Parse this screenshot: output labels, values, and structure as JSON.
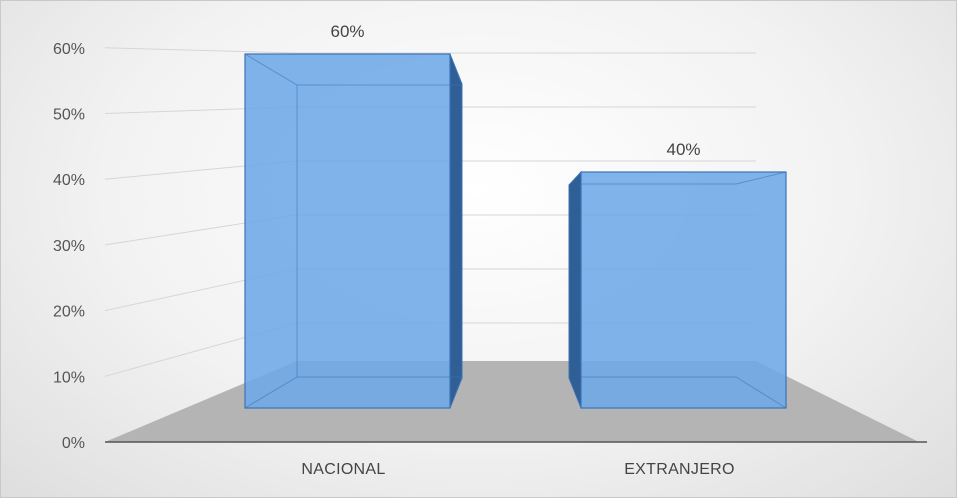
{
  "chart_data": {
    "type": "bar",
    "style": "3d-column",
    "categories": [
      "NACIONAL",
      "EXTRANJERO"
    ],
    "values": [
      60,
      40
    ],
    "data_labels": [
      "60%",
      "40%"
    ],
    "y_ticks": [
      "0%",
      "10%",
      "20%",
      "30%",
      "40%",
      "50%",
      "60%"
    ],
    "ylim": [
      0,
      60
    ],
    "title": "",
    "xlabel": "",
    "ylabel": "",
    "grid": true,
    "legend": "none",
    "colors": {
      "bar_fill": "#6ea8e6",
      "bar_edge": "#3a73b8",
      "bar_side": "#2f5f95",
      "floor": "#b4b4b4",
      "gridline": "#d6d6d6"
    }
  }
}
